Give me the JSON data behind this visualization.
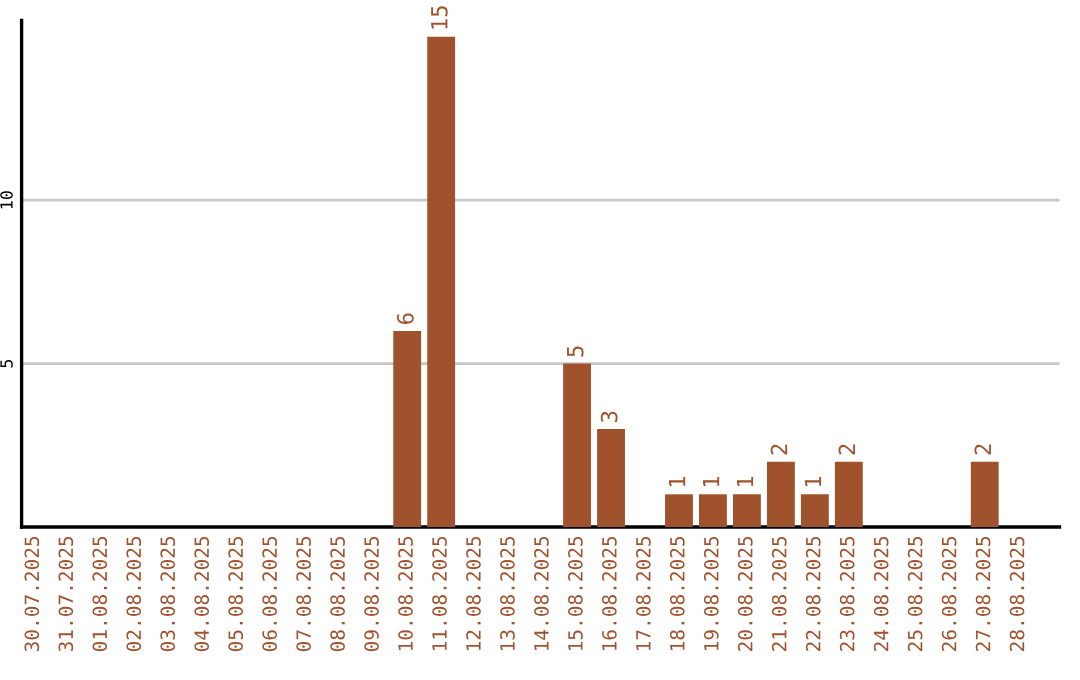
{
  "chart_data": {
    "type": "bar",
    "categories": [
      "30.07.2025",
      "31.07.2025",
      "01.08.2025",
      "02.08.2025",
      "03.08.2025",
      "04.08.2025",
      "05.08.2025",
      "06.08.2025",
      "07.08.2025",
      "08.08.2025",
      "09.08.2025",
      "10.08.2025",
      "11.08.2025",
      "12.08.2025",
      "13.08.2025",
      "14.08.2025",
      "15.08.2025",
      "16.08.2025",
      "17.08.2025",
      "18.08.2025",
      "19.08.2025",
      "20.08.2025",
      "21.08.2025",
      "22.08.2025",
      "23.08.2025",
      "24.08.2025",
      "25.08.2025",
      "26.08.2025",
      "27.08.2025",
      "28.08.2025"
    ],
    "values": [
      0,
      0,
      0,
      0,
      0,
      0,
      0,
      0,
      0,
      0,
      0,
      6,
      15,
      0,
      0,
      0,
      5,
      3,
      0,
      1,
      1,
      1,
      2,
      1,
      2,
      0,
      0,
      0,
      2,
      0
    ],
    "value_labels": [
      null,
      null,
      null,
      null,
      null,
      null,
      null,
      null,
      null,
      null,
      null,
      "6",
      "15",
      null,
      null,
      null,
      "5",
      "3",
      null,
      "1",
      "1",
      "1",
      "2",
      "1",
      "2",
      null,
      null,
      null,
      "2",
      null
    ],
    "color": "#a0522d",
    "ylim": [
      0,
      15.5
    ],
    "yticks": [
      5,
      10
    ],
    "grid": "y"
  }
}
